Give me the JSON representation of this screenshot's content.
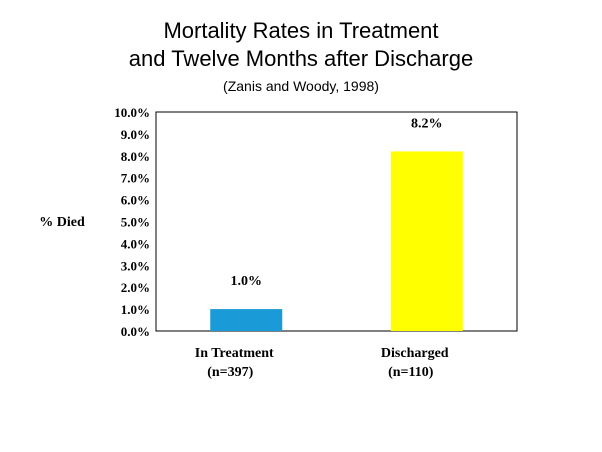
{
  "chart_data": {
    "type": "bar",
    "title_lines": [
      "Mortality Rates in Treatment",
      "and Twelve Months after Discharge"
    ],
    "subtitle": "(Zanis and Woody, 1998)",
    "ylabel": "% Died",
    "xlabel": "",
    "ylim": [
      0,
      10
    ],
    "yticks": [
      "0.0%",
      "1.0%",
      "2.0%",
      "3.0%",
      "4.0%",
      "5.0%",
      "6.0%",
      "7.0%",
      "8.0%",
      "9.0%",
      "10.0%"
    ],
    "categories": [
      {
        "label": "In Treatment",
        "sublabel": "(n=397)"
      },
      {
        "label": "Discharged",
        "sublabel": "(n=110)"
      }
    ],
    "values": [
      1.0,
      8.2
    ],
    "value_labels": [
      "1.0%",
      "8.2%"
    ],
    "bar_colors": [
      "#1a9ad6",
      "#ffff00"
    ],
    "grid": false,
    "legend": "none"
  }
}
